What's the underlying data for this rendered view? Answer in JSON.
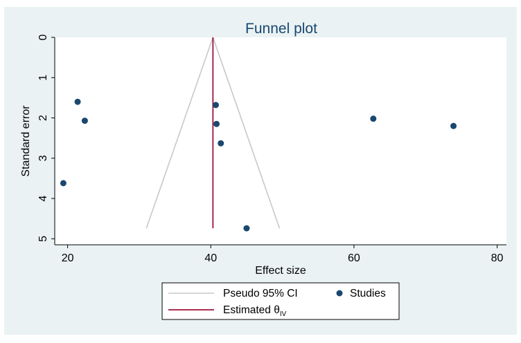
{
  "colors": {
    "outer_bg": "#eaf2f3",
    "plot_bg": "#ffffff",
    "title": "#1a476f",
    "axis_text": "#000000",
    "ci_lines": "#c8c8c8",
    "estimate_line": "#a0103a",
    "points": "#1a476f",
    "legend_border": "#000000"
  },
  "chart_data": {
    "type": "scatter",
    "title": "Funnel plot",
    "xlabel": "Effect size",
    "ylabel": "Standard error",
    "xlim": [
      18.2,
      81.3
    ],
    "ylim": [
      0,
      5.15
    ],
    "y_reversed": true,
    "grid": false,
    "x_ticks": [
      20,
      40,
      60,
      80
    ],
    "y_ticks": [
      0,
      1,
      2,
      3,
      4,
      5
    ],
    "series": [
      {
        "name": "Studies",
        "marker": "filled-circle",
        "points": [
          {
            "x": 21.4,
            "y": 1.6
          },
          {
            "x": 22.4,
            "y": 2.07
          },
          {
            "x": 19.4,
            "y": 3.62
          },
          {
            "x": 40.7,
            "y": 1.68
          },
          {
            "x": 40.8,
            "y": 2.15
          },
          {
            "x": 41.4,
            "y": 2.63
          },
          {
            "x": 45.0,
            "y": 4.74
          },
          {
            "x": 62.7,
            "y": 2.02
          },
          {
            "x": 73.9,
            "y": 2.2
          }
        ]
      }
    ],
    "pseudo_ci": {
      "name": "Pseudo 95% CI",
      "apex": {
        "x": 40.3,
        "y": 0
      },
      "left_base": {
        "x": 31.0,
        "y": 4.74
      },
      "right_base": {
        "x": 49.6,
        "y": 4.74
      }
    },
    "estimate": {
      "name_main": "Estimated θ",
      "name_sub": "IV",
      "x": 40.3,
      "y_range": [
        0,
        4.74
      ]
    },
    "legend": {
      "placement": "bottom-center",
      "entries": [
        "Pseudo 95% CI",
        "Studies",
        "Estimated θIV"
      ]
    }
  }
}
